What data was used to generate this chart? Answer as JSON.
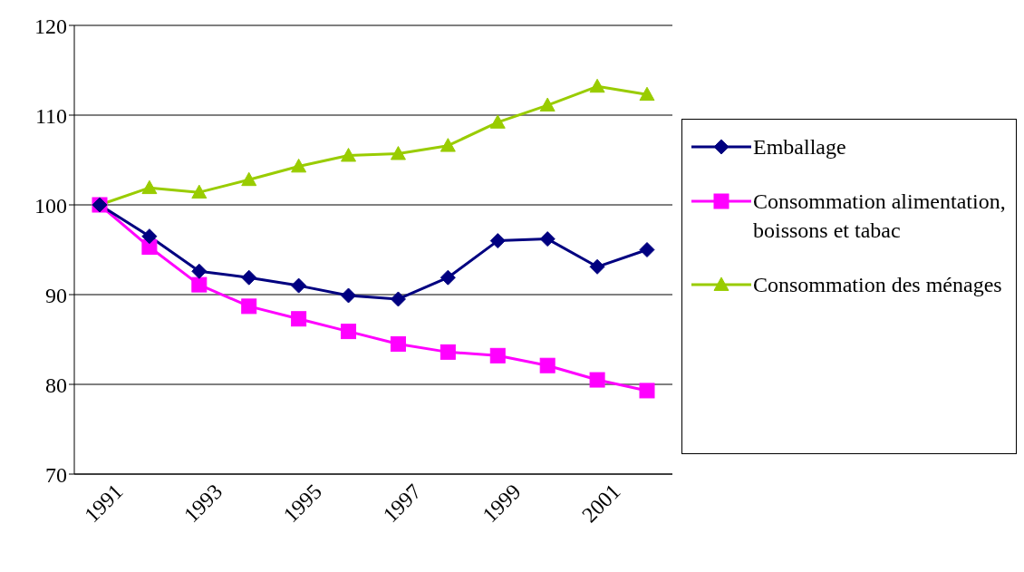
{
  "chart_data": {
    "type": "line",
    "categories": [
      "1991",
      null,
      "1993",
      null,
      "1995",
      null,
      "1997",
      null,
      "1999",
      null,
      "2001",
      null
    ],
    "series": [
      {
        "name": "Emballage",
        "color": "#000080",
        "marker": "diamond",
        "values": [
          100,
          96.5,
          92.6,
          91.9,
          91.0,
          89.9,
          89.5,
          91.9,
          96.0,
          96.2,
          93.1,
          95.0
        ]
      },
      {
        "name": "Consommation alimentation, boissons et tabac",
        "color": "#ff00ff",
        "marker": "square",
        "values": [
          100,
          95.3,
          91.1,
          88.7,
          87.3,
          85.9,
          84.5,
          83.6,
          83.2,
          82.1,
          80.5,
          79.3
        ]
      },
      {
        "name": "Consommation des ménages",
        "color": "#99cc00",
        "marker": "triangle",
        "values": [
          100,
          101.9,
          101.4,
          102.8,
          104.3,
          105.5,
          105.7,
          106.6,
          109.2,
          111.1,
          113.2,
          112.3
        ]
      }
    ],
    "ylim": [
      70,
      120
    ],
    "yticks": [
      70,
      80,
      90,
      100,
      110,
      120
    ],
    "grid": "y",
    "legend": "right"
  }
}
